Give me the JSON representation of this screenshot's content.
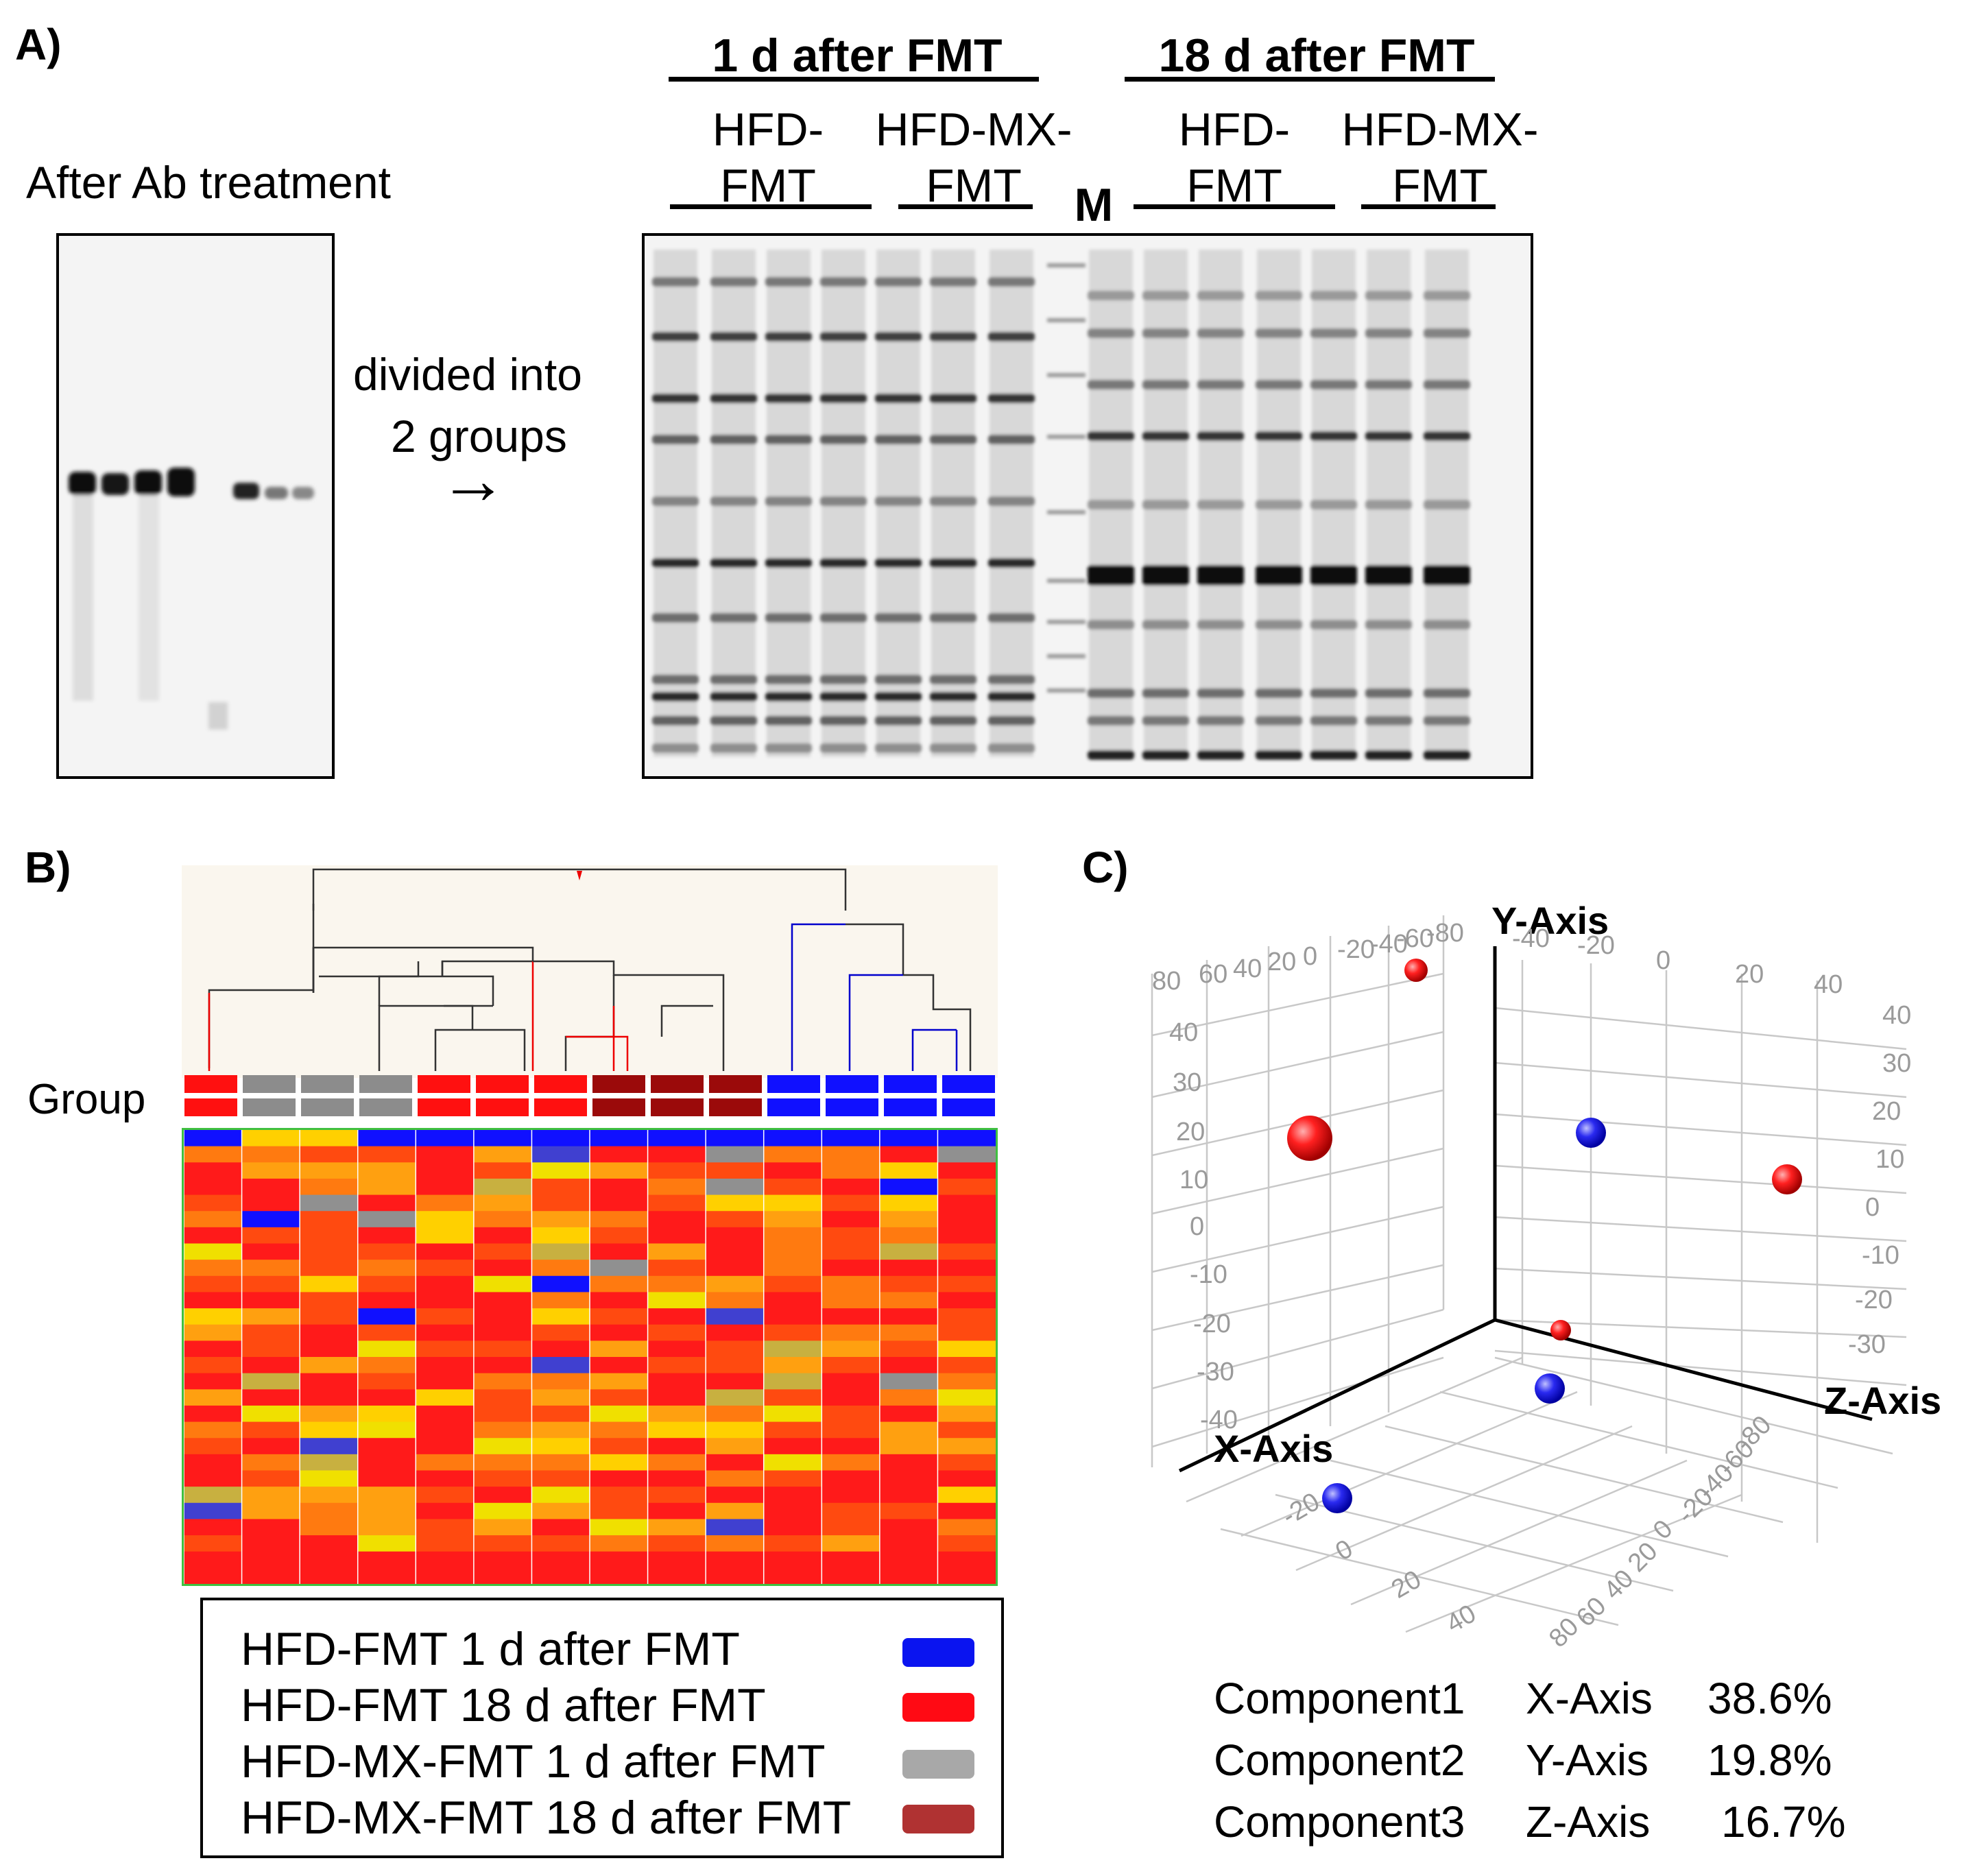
{
  "panels": {
    "a": "A)",
    "b": "B)",
    "c": "C)"
  },
  "panel_a": {
    "left_gel_title": "After Ab treatment",
    "arrow_text_line1": "divided into",
    "arrow_text_line2": "2 groups",
    "arrow_glyph": "→",
    "time_1d": "1 d after FMT",
    "time_18d": "18 d after FMT",
    "group1_line1": "HFD-",
    "group1_line2": "FMT",
    "group2_line1": "HFD-MX-",
    "group2_line2": "FMT",
    "group3_line1": "HFD-",
    "group3_line2": "FMT",
    "group4_line1": "HFD-MX-",
    "group4_line2": "FMT",
    "marker": "M"
  },
  "panel_b": {
    "group_label": "Group",
    "group_colors": [
      "#ff1010",
      "#8c8c8c",
      "#8c8c8c",
      "#8c8c8c",
      "#ff1010",
      "#ff1010",
      "#ff1010",
      "#9b0a0a",
      "#9b0a0a",
      "#9b0a0a",
      "#1010ff",
      "#1010ff",
      "#1010ff",
      "#1010ff"
    ],
    "legend": [
      {
        "label": "HFD-FMT 1 d after FMT",
        "color": "#0a14f0"
      },
      {
        "label": "HFD-FMT 18 d after FMT",
        "color": "#ff0a14"
      },
      {
        "label": "HFD-MX-FMT  1 d after FMT",
        "color": "#a8a8a8"
      },
      {
        "label": "HFD-MX-FMT  18 d after FMT",
        "color": "#b03232"
      }
    ]
  },
  "panel_c": {
    "y_axis": "Y-Axis",
    "x_axis": "X-Axis",
    "z_axis": "Z-Axis",
    "components": [
      {
        "name": "Component1",
        "axis": "X-Axis",
        "pct": "38.6%"
      },
      {
        "name": "Component2",
        "axis": "Y-Axis",
        "pct": "19.8%"
      },
      {
        "name": "Component3",
        "axis": "Z-Axis",
        "pct": "16.7%"
      }
    ],
    "ticks_left": [
      "80",
      "60",
      "40",
      "20",
      "0",
      "-20",
      "-40",
      "-60",
      "-80"
    ],
    "ticks_top": [
      "-40",
      "-20",
      "0",
      "20",
      "40"
    ],
    "ticks_right": [
      "40",
      "30",
      "20",
      "10",
      "0",
      "-10",
      "-20",
      "-30"
    ],
    "ticks_left_vertical": [
      "40",
      "30",
      "20",
      "10",
      "0",
      "-10",
      "-20",
      "-30",
      "-40"
    ],
    "ticks_bottom_x": [
      "-20",
      "0",
      "20",
      "40"
    ],
    "ticks_bottom_z": [
      "-80",
      "-60",
      "-40",
      "-20",
      "0",
      "20",
      "40",
      "60",
      "80"
    ]
  }
}
